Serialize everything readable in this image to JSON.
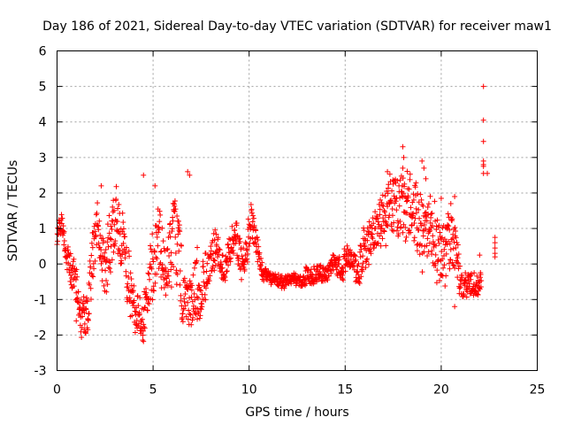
{
  "chart_data": {
    "type": "scatter",
    "title": "Day 186 of 2021, Sidereal Day-to-day VTEC variation (SDTVAR) for receiver maw1",
    "xlabel": "GPS time / hours",
    "ylabel": "SDTVAR / TECUs",
    "xlim": [
      0,
      25
    ],
    "ylim": [
      -3,
      6
    ],
    "x_ticks": [
      0,
      5,
      10,
      15,
      20,
      25
    ],
    "y_ticks": [
      -3,
      -2,
      -1,
      0,
      1,
      2,
      3,
      4,
      5,
      6
    ],
    "x_tick_labels": [
      "0",
      "5",
      "10",
      "15",
      "20",
      "25"
    ],
    "y_tick_labels": [
      "-3",
      "-2",
      "-1",
      "0",
      "1",
      "2",
      "3",
      "4",
      "5",
      "6"
    ],
    "grid": true,
    "marker": "plus",
    "color": "#ff0000",
    "series": [
      {
        "name": "SDTVAR",
        "profile_x": [
          0.0,
          0.15,
          0.3,
          0.5,
          0.7,
          0.9,
          1.1,
          1.3,
          1.5,
          1.7,
          1.9,
          2.1,
          2.3,
          2.5,
          2.7,
          2.9,
          3.1,
          3.3,
          3.5,
          3.7,
          3.9,
          4.1,
          4.3,
          4.5,
          4.7,
          4.9,
          5.1,
          5.3,
          5.5,
          5.7,
          5.9,
          6.1,
          6.3,
          6.5,
          6.7,
          6.9,
          7.1,
          7.3,
          7.5,
          7.7,
          7.9,
          8.1,
          8.3,
          8.5,
          8.7,
          8.9,
          9.1,
          9.3,
          9.5,
          9.7,
          9.9,
          10.1,
          10.3,
          10.5,
          10.7,
          10.9,
          11.2,
          11.5,
          11.8,
          12.1,
          12.4,
          12.7,
          13.0,
          13.3,
          13.6,
          13.9,
          14.2,
          14.5,
          14.8,
          15.1,
          15.4,
          15.7,
          16.0,
          16.3,
          16.6,
          16.9,
          17.2,
          17.5,
          17.8,
          18.1,
          18.4,
          18.7,
          19.0,
          19.3,
          19.6,
          19.9,
          20.2,
          20.5,
          20.8,
          21.0,
          21.3,
          21.6,
          21.9,
          22.1
        ],
        "profile_y": [
          0.8,
          1.1,
          1.0,
          0.2,
          -0.2,
          -0.6,
          -0.9,
          -1.3,
          -1.6,
          -0.8,
          0.6,
          1.2,
          0.4,
          -0.2,
          0.2,
          1.0,
          1.6,
          0.8,
          0.1,
          -0.5,
          -0.9,
          -1.2,
          -1.4,
          -1.5,
          -0.8,
          -0.3,
          0.2,
          0.6,
          0.2,
          -0.2,
          0.4,
          1.0,
          0.4,
          -0.4,
          -0.9,
          -1.2,
          -0.8,
          -0.6,
          -1.0,
          -0.5,
          -0.1,
          0.3,
          0.5,
          0.1,
          -0.2,
          0.2,
          0.6,
          0.8,
          0.3,
          -0.1,
          0.5,
          1.2,
          0.8,
          0.2,
          -0.2,
          -0.3,
          -0.4,
          -0.45,
          -0.5,
          -0.4,
          -0.45,
          -0.5,
          -0.3,
          -0.4,
          -0.2,
          -0.3,
          -0.1,
          0.0,
          -0.2,
          0.2,
          0.0,
          -0.3,
          0.5,
          0.8,
          1.0,
          1.3,
          1.5,
          1.8,
          1.7,
          1.5,
          1.6,
          1.3,
          1.0,
          0.9,
          0.7,
          0.5,
          0.3,
          0.8,
          0.2,
          -0.6,
          -0.7,
          -0.5,
          -0.6,
          -0.5
        ],
        "profile_spread": [
          0.25,
          0.3,
          0.3,
          0.3,
          0.4,
          0.5,
          0.6,
          0.6,
          0.5,
          0.6,
          0.7,
          0.6,
          0.6,
          0.7,
          0.8,
          0.9,
          0.8,
          0.8,
          0.7,
          0.7,
          0.6,
          0.6,
          0.5,
          0.6,
          0.7,
          0.8,
          0.9,
          0.9,
          0.8,
          0.8,
          0.9,
          1.0,
          1.0,
          0.9,
          0.8,
          0.7,
          0.7,
          0.8,
          0.8,
          0.6,
          0.5,
          0.5,
          0.5,
          0.4,
          0.4,
          0.4,
          0.4,
          0.4,
          0.4,
          0.4,
          0.4,
          0.5,
          0.4,
          0.3,
          0.2,
          0.15,
          0.15,
          0.15,
          0.15,
          0.15,
          0.15,
          0.15,
          0.2,
          0.2,
          0.2,
          0.2,
          0.2,
          0.25,
          0.3,
          0.3,
          0.35,
          0.4,
          0.5,
          0.6,
          0.6,
          0.6,
          0.7,
          0.7,
          0.7,
          0.8,
          0.8,
          0.9,
          0.9,
          0.8,
          0.8,
          0.8,
          0.8,
          0.9,
          0.8,
          0.4,
          0.3,
          0.3,
          0.3,
          0.3
        ],
        "extra_points": [
          [
            22.2,
            5.0
          ],
          [
            22.2,
            4.05
          ],
          [
            22.2,
            3.45
          ],
          [
            22.2,
            2.9
          ],
          [
            22.2,
            2.8
          ],
          [
            22.2,
            2.75
          ],
          [
            22.2,
            2.55
          ],
          [
            22.4,
            2.55
          ],
          [
            22.8,
            0.75
          ],
          [
            22.8,
            0.6
          ],
          [
            22.8,
            0.45
          ],
          [
            22.8,
            0.3
          ],
          [
            22.8,
            0.2
          ],
          [
            22.0,
            0.25
          ],
          [
            17.2,
            2.6
          ],
          [
            18.0,
            3.3
          ],
          [
            18.05,
            3.0
          ],
          [
            18.0,
            2.7
          ],
          [
            19.0,
            2.9
          ],
          [
            19.1,
            2.7
          ],
          [
            19.2,
            2.4
          ],
          [
            20.0,
            1.85
          ],
          [
            20.5,
            1.7
          ],
          [
            20.7,
            1.9
          ],
          [
            2.3,
            2.2
          ],
          [
            4.5,
            2.5
          ],
          [
            6.8,
            2.6
          ],
          [
            6.9,
            2.5
          ],
          [
            5.1,
            2.2
          ],
          [
            1.5,
            -1.95
          ],
          [
            1.6,
            -1.85
          ],
          [
            1.0,
            -1.6
          ],
          [
            4.5,
            -1.7
          ],
          [
            7.3,
            -1.55
          ],
          [
            20.7,
            -1.2
          ]
        ]
      }
    ]
  }
}
